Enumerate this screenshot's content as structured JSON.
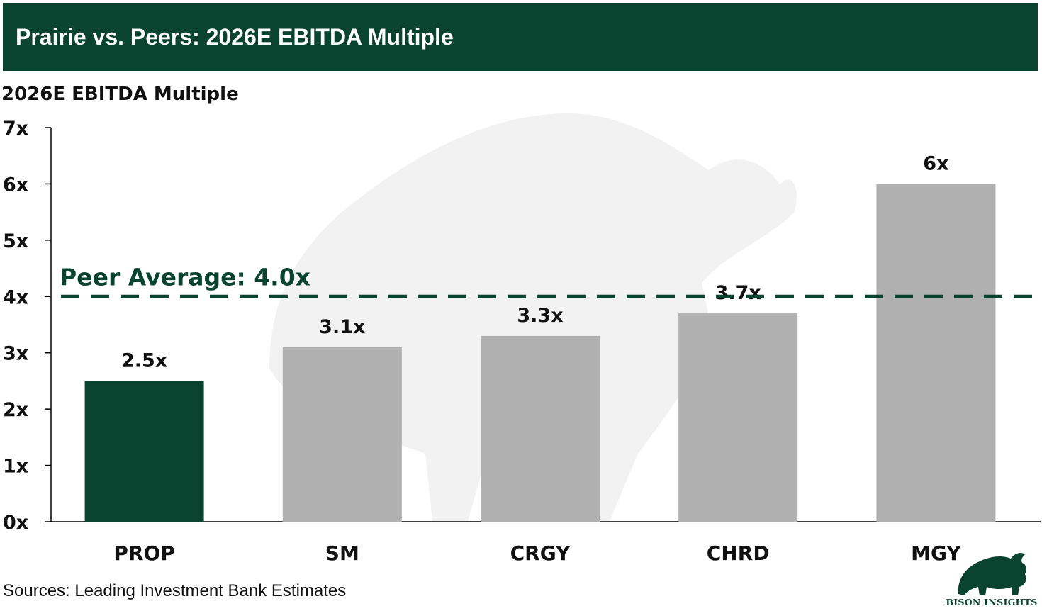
{
  "header": {
    "title": "Prairie vs. Peers: 2026E EBITDA Multiple"
  },
  "chart_data": {
    "type": "bar",
    "title": "Prairie vs. Peers: 2026E EBITDA Multiple",
    "ylabel": "2026E EBITDA Multiple",
    "xlabel": "",
    "categories": [
      "PROP",
      "SM",
      "CRGY",
      "CHRD",
      "MGY"
    ],
    "values": [
      2.5,
      3.1,
      3.3,
      3.7,
      6.0
    ],
    "value_labels": [
      "2.5x",
      "3.1x",
      "3.3x",
      "3.7x",
      "6x"
    ],
    "bar_colors": [
      "#0b4331",
      "#b0b0b0",
      "#b0b0b0",
      "#b0b0b0",
      "#b0b0b0"
    ],
    "ylim": [
      0,
      7
    ],
    "yticks": [
      0,
      1,
      2,
      3,
      4,
      5,
      6,
      7
    ],
    "ytick_labels": [
      "0x",
      "1x",
      "2x",
      "3x",
      "4x",
      "5x",
      "6x",
      "7x"
    ],
    "reference_line": {
      "value": 4.0,
      "label": "Peer Average: 4.0x",
      "color": "#0b4331",
      "style": "dashed"
    },
    "grid": false,
    "legend": "none"
  },
  "footer": {
    "source": "Sources: Leading Investment Bank Estimates",
    "brand": "BISON INSIGHTS"
  },
  "colors": {
    "accent": "#0b4331",
    "peer_bar": "#b0b0b0"
  }
}
